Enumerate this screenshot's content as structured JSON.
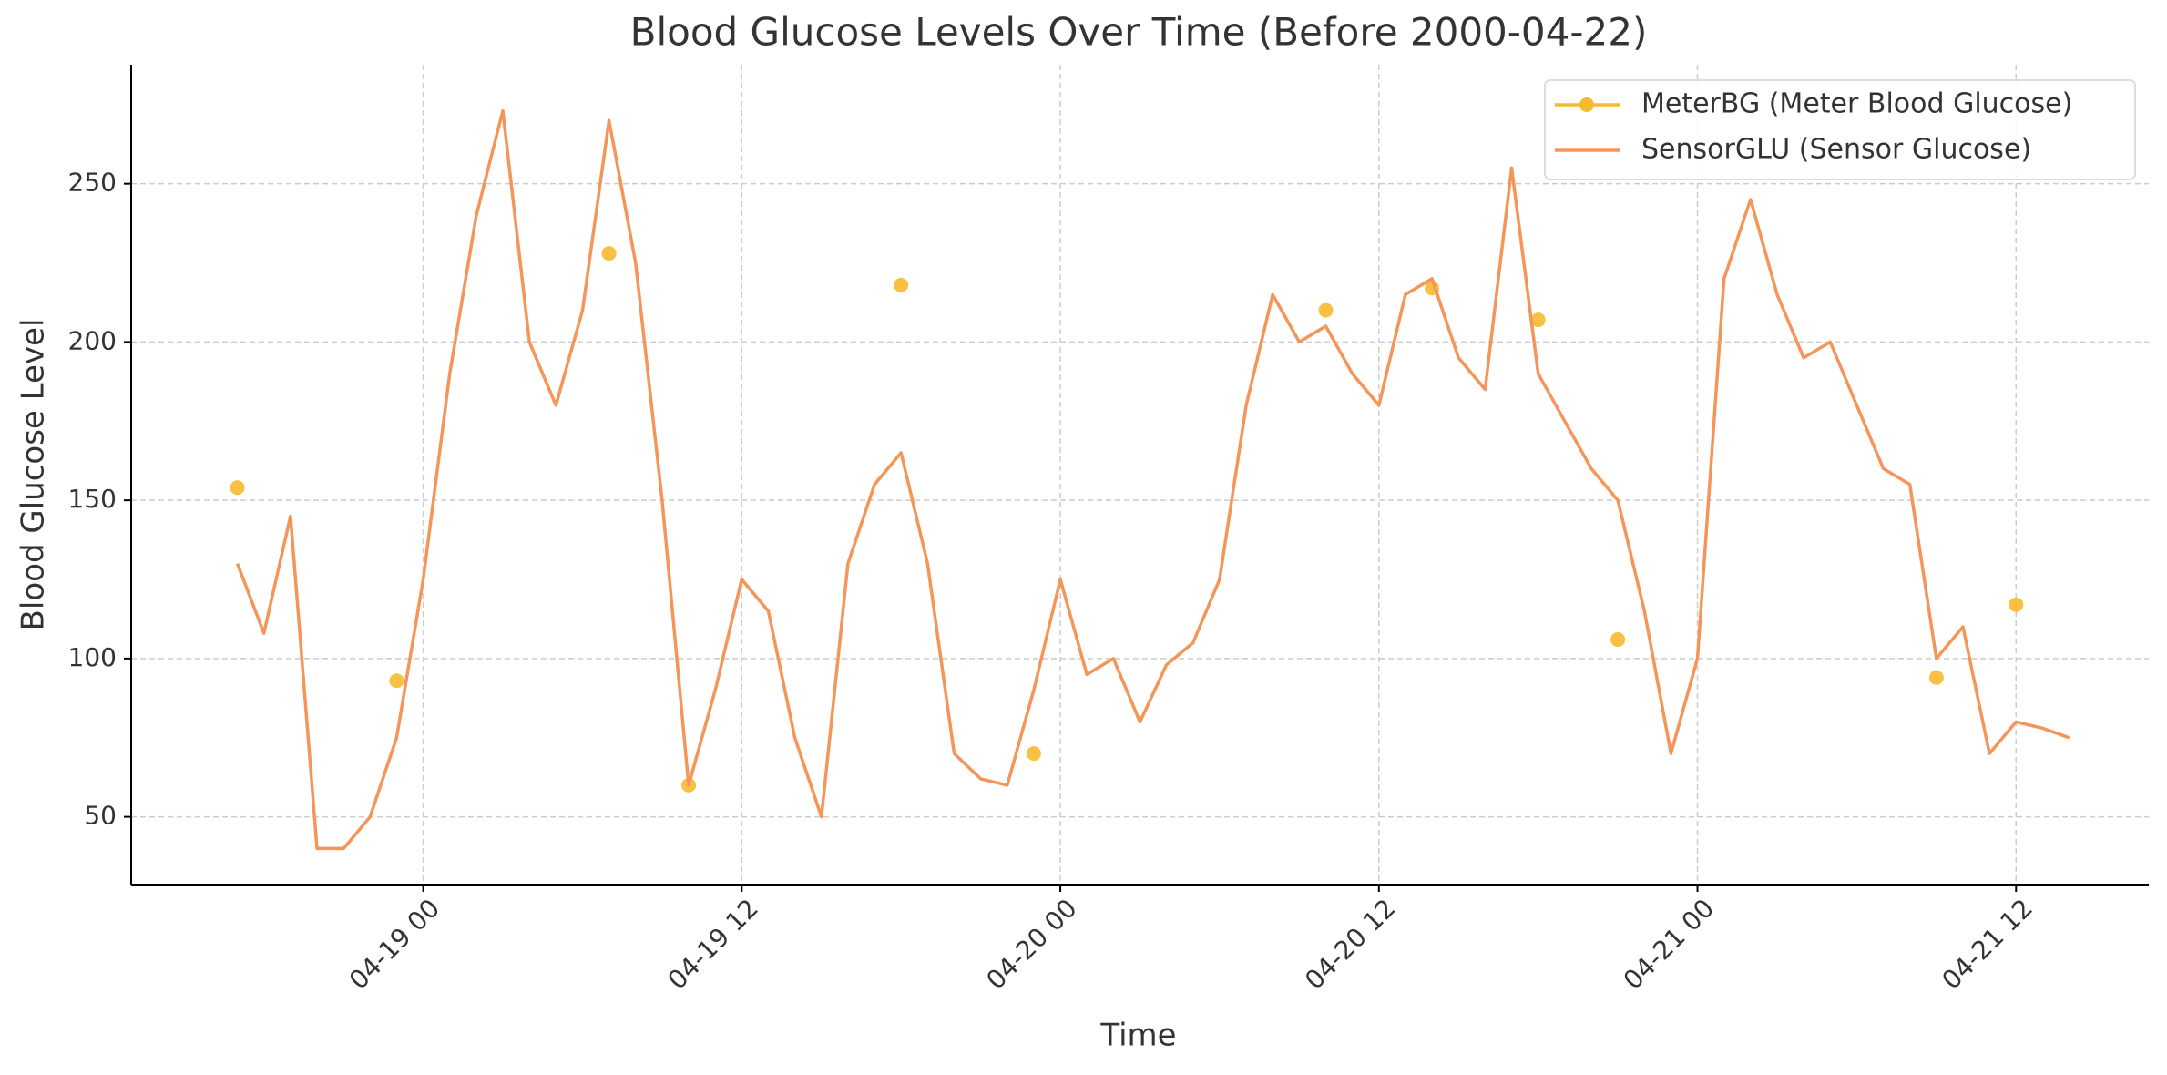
{
  "chart_data": {
    "type": "line",
    "title": "Blood Glucose Levels Over Time (Before 2000-04-22)",
    "x_label": "Time",
    "y_label": "Blood Glucose Level",
    "xlim": [
      "04-18 13",
      "04-21 17"
    ],
    "ylim": [
      28.6,
      287.6
    ],
    "xticks": [
      "04-19 00",
      "04-19 12",
      "04-20 00",
      "04-20 12",
      "04-21 00",
      "04-21 12"
    ],
    "yticks": [
      50,
      100,
      150,
      200,
      250
    ],
    "grid": true,
    "legend": "upper right",
    "series": [
      {
        "name": "MeterBG (Meter Blood Glucose)",
        "color": "#f9b92f",
        "style": "markers",
        "x": [
          "04-18 17",
          "04-18 23",
          "04-19 07",
          "04-19 10",
          "04-19 18",
          "04-19 23",
          "04-20 10",
          "04-20 14",
          "04-20 18",
          "04-20 21",
          "04-21 09",
          "04-21 12"
        ],
        "values": [
          154,
          93,
          228,
          60,
          218,
          70,
          210,
          217,
          207,
          106,
          94,
          117
        ]
      },
      {
        "name": "SensorGLU (Sensor Glucose)",
        "color": "#f4955a",
        "style": "line",
        "x": [
          "04-18 17",
          "04-18 18",
          "04-18 19",
          "04-18 20",
          "04-18 21",
          "04-18 22",
          "04-18 23",
          "04-19 00",
          "04-19 01",
          "04-19 02",
          "04-19 03",
          "04-19 04",
          "04-19 05",
          "04-19 06",
          "04-19 07",
          "04-19 08",
          "04-19 09",
          "04-19 10",
          "04-19 11",
          "04-19 12",
          "04-19 13",
          "04-19 14",
          "04-19 15",
          "04-19 16",
          "04-19 17",
          "04-19 18",
          "04-19 19",
          "04-19 20",
          "04-19 21",
          "04-19 22",
          "04-19 23",
          "04-20 00",
          "04-20 01",
          "04-20 02",
          "04-20 03",
          "04-20 04",
          "04-20 05",
          "04-20 06",
          "04-20 07",
          "04-20 08",
          "04-20 09",
          "04-20 10",
          "04-20 11",
          "04-20 12",
          "04-20 13",
          "04-20 14",
          "04-20 15",
          "04-20 16",
          "04-20 17",
          "04-20 18",
          "04-20 19",
          "04-20 20",
          "04-20 21",
          "04-20 22",
          "04-20 23",
          "04-21 00",
          "04-21 01",
          "04-21 02",
          "04-21 03",
          "04-21 04",
          "04-21 05",
          "04-21 06",
          "04-21 07",
          "04-21 08",
          "04-21 09",
          "04-21 10",
          "04-21 11",
          "04-21 12",
          "04-21 13",
          "04-21 14"
        ],
        "values": [
          130,
          108,
          145,
          40,
          40,
          50,
          75,
          125,
          190,
          240,
          273,
          200,
          180,
          210,
          270,
          225,
          150,
          60,
          90,
          125,
          115,
          75,
          50,
          130,
          155,
          165,
          130,
          70,
          62,
          60,
          90,
          125,
          95,
          100,
          80,
          98,
          105,
          125,
          180,
          215,
          200,
          205,
          190,
          180,
          215,
          220,
          195,
          185,
          255,
          190,
          175,
          160,
          150,
          115,
          70,
          100,
          220,
          245,
          215,
          195,
          200,
          180,
          160,
          155,
          100,
          110,
          70,
          80,
          78,
          75
        ]
      }
    ]
  }
}
